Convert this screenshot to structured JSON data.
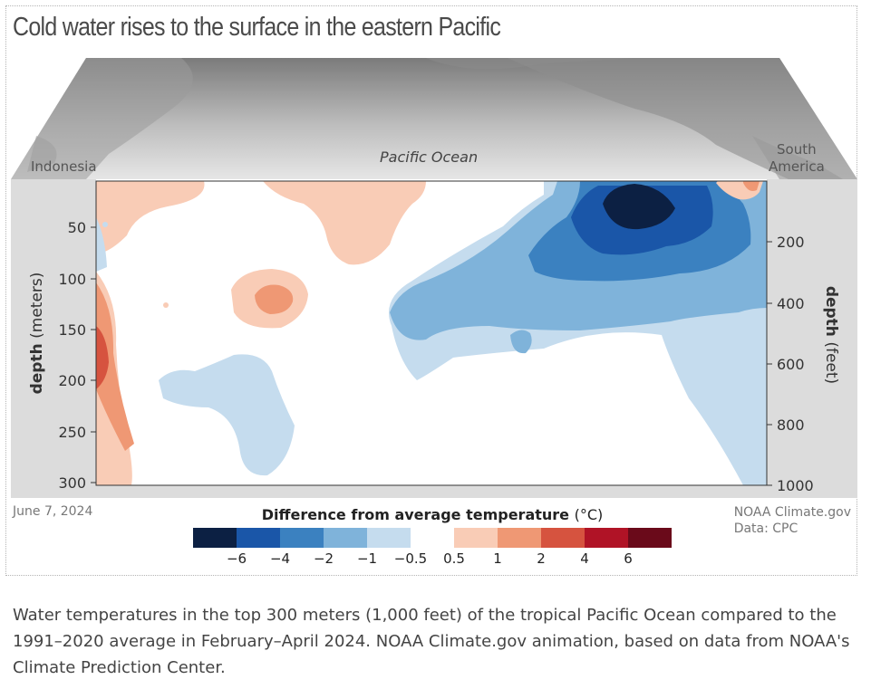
{
  "figure": {
    "title": "Cold water rises to the surface in the eastern Pacific",
    "date": "June 7, 2024",
    "credit_line1": "NOAA Climate.gov",
    "credit_line2": "Data: CPC",
    "caption": "Water temperatures in the top 300 meters (1,000 feet) of the tropical Pacific Ocean compared to the 1991–2020 average in February–April 2024. NOAA Climate.gov animation, based on data from NOAA's Climate Prediction Center."
  },
  "map": {
    "labels": [
      "Indonesia",
      "Pacific Ocean",
      "South",
      "America"
    ]
  },
  "chart_data": {
    "type": "heatmap",
    "title": "Cold water rises to the surface in the eastern Pacific",
    "left_axis": {
      "label_bold": "depth",
      "label_unit": "(meters)",
      "ticks": [
        50,
        100,
        150,
        200,
        250,
        300
      ],
      "range": [
        0,
        300
      ]
    },
    "right_axis": {
      "label_bold": "depth",
      "label_unit": "(feet)",
      "ticks": [
        200,
        400,
        600,
        800,
        1000
      ],
      "range": [
        0,
        1000
      ]
    },
    "x_range_labels": [
      "Indonesia",
      "South America"
    ],
    "legend": {
      "title": "Difference from average temperature",
      "unit": "(°C)",
      "colors": [
        "#0c2043",
        "#1a56a8",
        "#3b81c0",
        "#7fb3da",
        "#c5dcee",
        "#ffffff",
        "#f9ccb6",
        "#ef9874",
        "#d6533f",
        "#b01326",
        "#6a0a1a"
      ],
      "tick_labels": [
        "−6",
        "−4",
        "−2",
        "−1",
        "−0.5",
        "0.5",
        "1",
        "2",
        "4",
        "6"
      ]
    },
    "features": [
      {
        "kind": "warm",
        "level": "0.5 to 1",
        "region": "western Pacific, 150–300 m"
      },
      {
        "kind": "warm",
        "level": "1 to 2",
        "region": "central-west Pacific, ~120 m"
      },
      {
        "kind": "warm",
        "level": "0.5 to 1",
        "region": "central Pacific, near surface to ~80 m"
      },
      {
        "kind": "cold",
        "level": "below −6",
        "region": "eastern Pacific, near surface (~30–60 m)"
      },
      {
        "kind": "cold",
        "level": "−0.5 to −4",
        "region": "eastern Pacific, 0–300 m"
      }
    ]
  }
}
